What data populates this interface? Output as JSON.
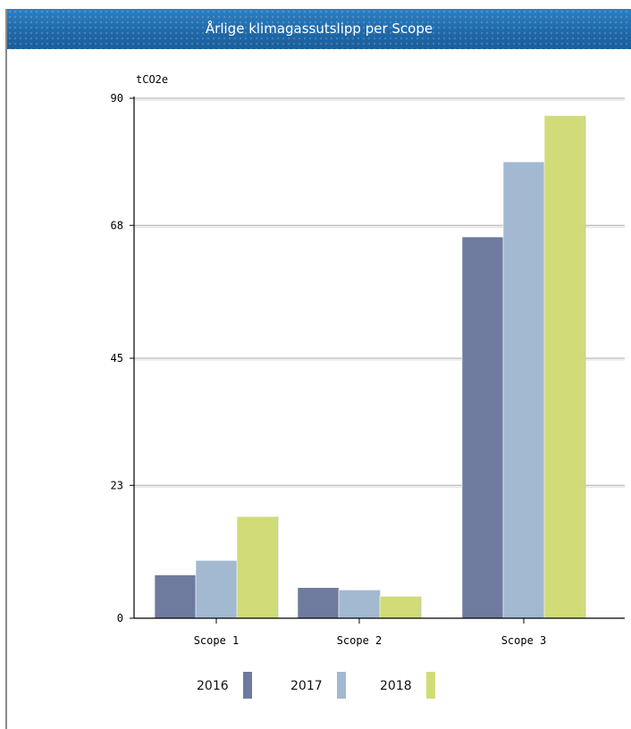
{
  "title": "Årlige klimagassutslipp per Scope",
  "chart_data": {
    "type": "bar",
    "ylabel": "tCO2e",
    "xlabel": "",
    "ylim": [
      0,
      90
    ],
    "yticks": [
      0,
      23,
      45,
      68,
      90
    ],
    "categories": [
      "Scope 1",
      "Scope 2",
      "Scope 3"
    ],
    "series": [
      {
        "name": "2016",
        "color": "#6e7b9e",
        "values": [
          7.5,
          5.3,
          66
        ]
      },
      {
        "name": "2017",
        "color": "#a3b8d1",
        "values": [
          10,
          4.9,
          79
        ]
      },
      {
        "name": "2018",
        "color": "#d1dc78",
        "values": [
          17.6,
          3.8,
          87
        ]
      }
    ],
    "grid": true,
    "legend_position": "bottom"
  }
}
